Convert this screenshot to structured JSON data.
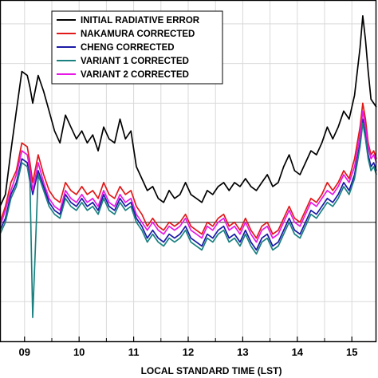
{
  "chart_data": {
    "type": "line",
    "title": "",
    "xlabel": "LOCAL STANDARD TIME (LST)",
    "ylabel": "",
    "x_ticks": [
      "09",
      "10",
      "11",
      "12",
      "13",
      "14",
      "15"
    ],
    "xlim": [
      8.55,
      15.45
    ],
    "ylim": [
      -1.5,
      2.8
    ],
    "grid": true,
    "reference_line_y": 0,
    "legend_position": "top-center",
    "series": [
      {
        "name": "INITIAL RADIATIVE ERROR",
        "color": "#000000",
        "x": [
          8.55,
          8.65,
          8.75,
          8.85,
          8.95,
          9.05,
          9.1,
          9.15,
          9.25,
          9.35,
          9.45,
          9.55,
          9.65,
          9.75,
          9.85,
          9.95,
          10.05,
          10.15,
          10.25,
          10.35,
          10.45,
          10.55,
          10.65,
          10.75,
          10.85,
          10.95,
          11.05,
          11.15,
          11.25,
          11.35,
          11.45,
          11.55,
          11.65,
          11.75,
          11.85,
          11.95,
          12.05,
          12.15,
          12.25,
          12.35,
          12.45,
          12.55,
          12.65,
          12.75,
          12.85,
          12.95,
          13.05,
          13.15,
          13.25,
          13.35,
          13.45,
          13.55,
          13.65,
          13.75,
          13.85,
          13.95,
          14.05,
          14.15,
          14.25,
          14.35,
          14.45,
          14.55,
          14.65,
          14.75,
          14.85,
          14.95,
          15.05,
          15.15,
          15.2,
          15.25,
          15.3,
          15.35,
          15.4,
          15.45
        ],
        "y": [
          0.2,
          0.35,
          0.9,
          1.4,
          1.9,
          1.85,
          1.7,
          1.5,
          1.85,
          1.65,
          1.4,
          1.15,
          1.0,
          1.35,
          1.2,
          1.05,
          1.15,
          1.0,
          1.1,
          0.9,
          1.2,
          1.05,
          1.0,
          1.3,
          1.05,
          1.15,
          0.7,
          0.55,
          0.4,
          0.45,
          0.3,
          0.25,
          0.4,
          0.3,
          0.35,
          0.5,
          0.35,
          0.3,
          0.25,
          0.4,
          0.35,
          0.45,
          0.5,
          0.4,
          0.5,
          0.45,
          0.55,
          0.45,
          0.4,
          0.5,
          0.6,
          0.45,
          0.5,
          0.7,
          0.85,
          0.65,
          0.6,
          0.75,
          0.9,
          0.85,
          1.0,
          1.2,
          1.05,
          1.2,
          1.4,
          1.3,
          1.6,
          2.2,
          2.6,
          2.3,
          1.9,
          1.55,
          1.5,
          1.45
        ]
      },
      {
        "name": "NAKAMURA CORRECTED",
        "color": "#e11919",
        "x": [
          8.55,
          8.65,
          8.75,
          8.85,
          8.95,
          9.05,
          9.1,
          9.15,
          9.25,
          9.35,
          9.45,
          9.55,
          9.65,
          9.75,
          9.85,
          9.95,
          10.05,
          10.15,
          10.25,
          10.35,
          10.45,
          10.55,
          10.65,
          10.75,
          10.85,
          10.95,
          11.05,
          11.15,
          11.25,
          11.35,
          11.45,
          11.55,
          11.65,
          11.75,
          11.85,
          11.95,
          12.05,
          12.15,
          12.25,
          12.35,
          12.45,
          12.55,
          12.65,
          12.75,
          12.85,
          12.95,
          13.05,
          13.15,
          13.25,
          13.35,
          13.45,
          13.55,
          13.65,
          13.75,
          13.85,
          13.95,
          14.05,
          14.15,
          14.25,
          14.35,
          14.45,
          14.55,
          14.65,
          14.75,
          14.85,
          14.95,
          15.05,
          15.15,
          15.2,
          15.25,
          15.3,
          15.35,
          15.4,
          15.45
        ],
        "y": [
          0.0,
          0.2,
          0.5,
          0.65,
          1.0,
          0.95,
          0.75,
          0.5,
          0.85,
          0.6,
          0.4,
          0.3,
          0.25,
          0.5,
          0.4,
          0.35,
          0.45,
          0.35,
          0.4,
          0.3,
          0.5,
          0.35,
          0.3,
          0.45,
          0.35,
          0.4,
          0.2,
          0.1,
          -0.05,
          0.05,
          -0.05,
          -0.1,
          0.0,
          -0.05,
          0.0,
          0.1,
          -0.05,
          -0.1,
          -0.15,
          0.0,
          -0.05,
          0.05,
          0.1,
          -0.05,
          0.0,
          -0.1,
          0.05,
          -0.1,
          -0.2,
          -0.05,
          0.0,
          -0.15,
          -0.1,
          0.05,
          0.2,
          0.05,
          0.0,
          0.15,
          0.3,
          0.25,
          0.35,
          0.5,
          0.4,
          0.5,
          0.65,
          0.55,
          0.8,
          1.2,
          1.5,
          1.3,
          1.0,
          0.85,
          0.9,
          0.8
        ]
      },
      {
        "name": "CHENG CORRECTED",
        "color": "#1a1aa6",
        "x": [
          8.55,
          8.65,
          8.75,
          8.85,
          8.95,
          9.05,
          9.1,
          9.15,
          9.25,
          9.35,
          9.45,
          9.55,
          9.65,
          9.75,
          9.85,
          9.95,
          10.05,
          10.15,
          10.25,
          10.35,
          10.45,
          10.55,
          10.65,
          10.75,
          10.85,
          10.95,
          11.05,
          11.15,
          11.25,
          11.35,
          11.45,
          11.55,
          11.65,
          11.75,
          11.85,
          11.95,
          12.05,
          12.15,
          12.25,
          12.35,
          12.45,
          12.55,
          12.65,
          12.75,
          12.85,
          12.95,
          13.05,
          13.15,
          13.25,
          13.35,
          13.45,
          13.55,
          13.65,
          13.75,
          13.85,
          13.95,
          14.05,
          14.15,
          14.25,
          14.35,
          14.45,
          14.55,
          14.65,
          14.75,
          14.85,
          14.95,
          15.05,
          15.15,
          15.2,
          15.25,
          15.3,
          15.35,
          15.4,
          15.45
        ],
        "y": [
          -0.1,
          0.05,
          0.35,
          0.5,
          0.8,
          0.75,
          0.55,
          0.35,
          0.65,
          0.45,
          0.25,
          0.15,
          0.1,
          0.35,
          0.25,
          0.2,
          0.3,
          0.2,
          0.25,
          0.15,
          0.35,
          0.2,
          0.15,
          0.3,
          0.2,
          0.25,
          0.05,
          -0.05,
          -0.2,
          -0.1,
          -0.2,
          -0.25,
          -0.15,
          -0.2,
          -0.15,
          -0.05,
          -0.2,
          -0.25,
          -0.3,
          -0.15,
          -0.2,
          -0.1,
          -0.05,
          -0.2,
          -0.15,
          -0.25,
          -0.1,
          -0.25,
          -0.35,
          -0.2,
          -0.15,
          -0.3,
          -0.25,
          -0.1,
          0.05,
          -0.1,
          -0.15,
          0.0,
          0.15,
          0.1,
          0.2,
          0.3,
          0.25,
          0.35,
          0.5,
          0.4,
          0.6,
          1.0,
          1.3,
          1.1,
          0.85,
          0.7,
          0.75,
          0.65
        ]
      },
      {
        "name": "VARIANT 1 CORRECTED",
        "color": "#1a8080",
        "x": [
          8.55,
          8.65,
          8.75,
          8.85,
          8.95,
          9.05,
          9.1,
          9.15,
          9.25,
          9.35,
          9.45,
          9.55,
          9.65,
          9.75,
          9.85,
          9.95,
          10.05,
          10.15,
          10.25,
          10.35,
          10.45,
          10.55,
          10.65,
          10.75,
          10.85,
          10.95,
          11.05,
          11.15,
          11.25,
          11.35,
          11.45,
          11.55,
          11.65,
          11.75,
          11.85,
          11.95,
          12.05,
          12.15,
          12.25,
          12.35,
          12.45,
          12.55,
          12.65,
          12.75,
          12.85,
          12.95,
          13.05,
          13.15,
          13.25,
          13.35,
          13.45,
          13.55,
          13.65,
          13.75,
          13.85,
          13.95,
          14.05,
          14.15,
          14.25,
          14.35,
          14.45,
          14.55,
          14.65,
          14.75,
          14.85,
          14.95,
          15.05,
          15.15,
          15.2,
          15.25,
          15.3,
          15.35,
          15.4,
          15.45
        ],
        "y": [
          -0.15,
          0.0,
          0.3,
          0.45,
          0.75,
          0.7,
          0.5,
          -1.2,
          0.6,
          0.4,
          0.2,
          0.1,
          0.05,
          0.3,
          0.2,
          0.15,
          0.25,
          0.15,
          0.2,
          0.1,
          0.3,
          0.15,
          0.1,
          0.25,
          0.15,
          0.2,
          0.0,
          -0.1,
          -0.25,
          -0.15,
          -0.25,
          -0.3,
          -0.2,
          -0.25,
          -0.2,
          -0.1,
          -0.25,
          -0.3,
          -0.35,
          -0.2,
          -0.25,
          -0.15,
          -0.1,
          -0.25,
          -0.2,
          -0.3,
          -0.15,
          -0.3,
          -0.4,
          -0.25,
          -0.2,
          -0.35,
          -0.3,
          -0.15,
          0.0,
          -0.15,
          -0.2,
          -0.05,
          0.1,
          0.05,
          0.15,
          0.25,
          0.2,
          0.3,
          0.45,
          0.35,
          0.55,
          0.95,
          1.25,
          1.05,
          0.8,
          0.65,
          0.7,
          0.6
        ]
      },
      {
        "name": "VARIANT 2 CORRECTED",
        "color": "#e619e6",
        "x": [
          8.55,
          8.65,
          8.75,
          8.85,
          8.95,
          9.05,
          9.1,
          9.15,
          9.25,
          9.35,
          9.45,
          9.55,
          9.65,
          9.75,
          9.85,
          9.95,
          10.05,
          10.15,
          10.25,
          10.35,
          10.45,
          10.55,
          10.65,
          10.75,
          10.85,
          10.95,
          11.05,
          11.15,
          11.25,
          11.35,
          11.45,
          11.55,
          11.65,
          11.75,
          11.85,
          11.95,
          12.05,
          12.15,
          12.25,
          12.35,
          12.45,
          12.55,
          12.65,
          12.75,
          12.85,
          12.95,
          13.05,
          13.15,
          13.25,
          13.35,
          13.45,
          13.55,
          13.65,
          13.75,
          13.85,
          13.95,
          14.05,
          14.15,
          14.25,
          14.35,
          14.45,
          14.55,
          14.65,
          14.75,
          14.85,
          14.95,
          15.05,
          15.15,
          15.2,
          15.25,
          15.3,
          15.35,
          15.4,
          15.45
        ],
        "y": [
          -0.05,
          0.15,
          0.4,
          0.6,
          0.9,
          0.85,
          0.65,
          0.4,
          0.75,
          0.5,
          0.3,
          0.2,
          0.15,
          0.4,
          0.3,
          0.25,
          0.35,
          0.25,
          0.3,
          0.2,
          0.4,
          0.25,
          0.2,
          0.35,
          0.25,
          0.3,
          0.1,
          0.0,
          -0.1,
          0.0,
          -0.1,
          -0.15,
          -0.05,
          -0.1,
          -0.05,
          0.05,
          -0.1,
          -0.15,
          -0.2,
          -0.05,
          -0.1,
          0.0,
          0.05,
          -0.1,
          -0.05,
          -0.15,
          0.0,
          -0.15,
          -0.25,
          -0.1,
          -0.05,
          -0.2,
          -0.15,
          0.0,
          0.15,
          0.0,
          -0.05,
          0.1,
          0.25,
          0.2,
          0.3,
          0.4,
          0.35,
          0.45,
          0.6,
          0.5,
          0.7,
          1.1,
          1.4,
          1.2,
          0.95,
          0.8,
          0.85,
          0.75
        ]
      }
    ]
  }
}
